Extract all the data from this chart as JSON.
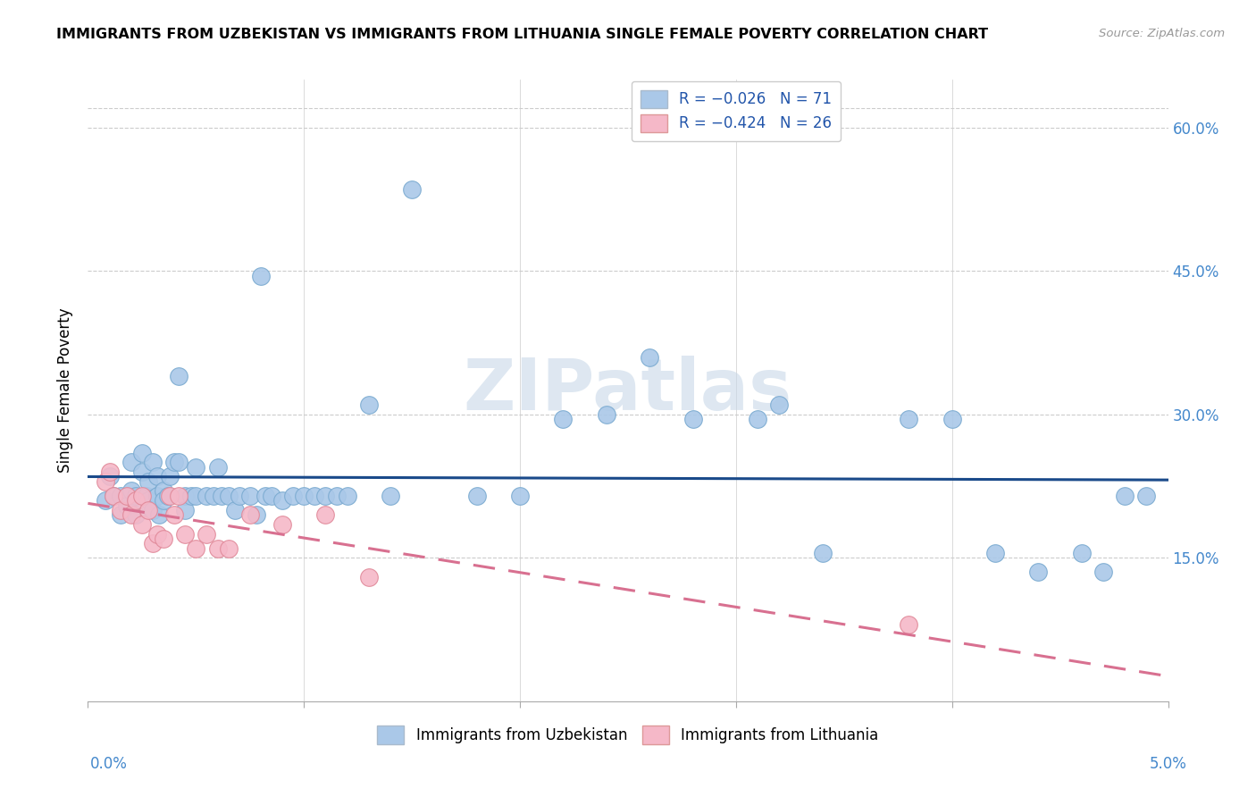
{
  "title": "IMMIGRANTS FROM UZBEKISTAN VS IMMIGRANTS FROM LITHUANIA SINGLE FEMALE POVERTY CORRELATION CHART",
  "source": "Source: ZipAtlas.com",
  "ylabel": "Single Female Poverty",
  "right_yticks": [
    "60.0%",
    "45.0%",
    "30.0%",
    "15.0%"
  ],
  "right_ytick_vals": [
    0.6,
    0.45,
    0.3,
    0.15
  ],
  "watermark": "ZIPatlas",
  "xlim": [
    0.0,
    0.05
  ],
  "ylim": [
    0.0,
    0.65
  ],
  "uzbekistan_color": "#aac8e8",
  "uzbekistan_edge": "#7aaad0",
  "lithuania_color": "#f5b8c8",
  "lithuania_edge": "#e08898",
  "trendline_uzbekistan_color": "#1a4a8a",
  "trendline_lithuania_color": "#d87090",
  "legend_box_blue": "#aac8e8",
  "legend_box_pink": "#f5b8c8",
  "uzbekistan_x": [
    0.0008,
    0.001,
    0.0012,
    0.0015,
    0.0015,
    0.0018,
    0.002,
    0.002,
    0.0022,
    0.0022,
    0.0025,
    0.0025,
    0.0027,
    0.0028,
    0.0028,
    0.003,
    0.003,
    0.0032,
    0.0032,
    0.0033,
    0.0035,
    0.0035,
    0.0037,
    0.0038,
    0.004,
    0.0042,
    0.0042,
    0.0045,
    0.0045,
    0.0048,
    0.005,
    0.005,
    0.0055,
    0.0058,
    0.006,
    0.0062,
    0.0065,
    0.0068,
    0.007,
    0.0075,
    0.0078,
    0.008,
    0.0082,
    0.0085,
    0.009,
    0.0095,
    0.01,
    0.0105,
    0.011,
    0.0115,
    0.012,
    0.013,
    0.014,
    0.015,
    0.018,
    0.02,
    0.022,
    0.024,
    0.026,
    0.028,
    0.031,
    0.032,
    0.034,
    0.038,
    0.04,
    0.042,
    0.044,
    0.046,
    0.047,
    0.048,
    0.049
  ],
  "uzbekistan_y": [
    0.21,
    0.235,
    0.215,
    0.195,
    0.215,
    0.205,
    0.25,
    0.22,
    0.215,
    0.195,
    0.26,
    0.24,
    0.215,
    0.23,
    0.21,
    0.2,
    0.25,
    0.215,
    0.235,
    0.195,
    0.22,
    0.21,
    0.215,
    0.235,
    0.25,
    0.34,
    0.25,
    0.215,
    0.2,
    0.215,
    0.215,
    0.245,
    0.215,
    0.215,
    0.245,
    0.215,
    0.215,
    0.2,
    0.215,
    0.215,
    0.195,
    0.445,
    0.215,
    0.215,
    0.21,
    0.215,
    0.215,
    0.215,
    0.215,
    0.215,
    0.215,
    0.31,
    0.215,
    0.535,
    0.215,
    0.215,
    0.295,
    0.3,
    0.36,
    0.295,
    0.295,
    0.31,
    0.155,
    0.295,
    0.295,
    0.155,
    0.135,
    0.155,
    0.135,
    0.215,
    0.215
  ],
  "lithuania_x": [
    0.0008,
    0.001,
    0.0012,
    0.0015,
    0.0018,
    0.002,
    0.0022,
    0.0025,
    0.0025,
    0.0028,
    0.003,
    0.0032,
    0.0035,
    0.0038,
    0.004,
    0.0042,
    0.0045,
    0.005,
    0.0055,
    0.006,
    0.0065,
    0.0075,
    0.009,
    0.011,
    0.013,
    0.038
  ],
  "lithuania_y": [
    0.23,
    0.24,
    0.215,
    0.2,
    0.215,
    0.195,
    0.21,
    0.185,
    0.215,
    0.2,
    0.165,
    0.175,
    0.17,
    0.215,
    0.195,
    0.215,
    0.175,
    0.16,
    0.175,
    0.16,
    0.16,
    0.195,
    0.185,
    0.195,
    0.13,
    0.08
  ]
}
